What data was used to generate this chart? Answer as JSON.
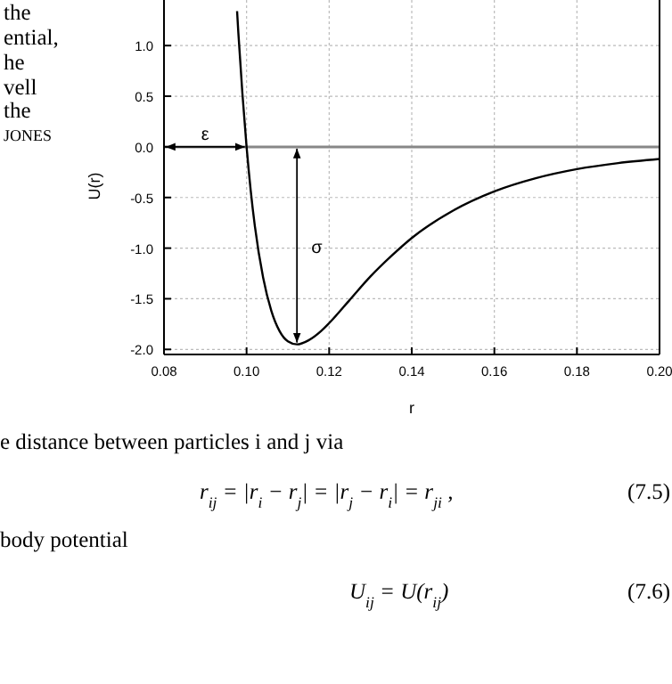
{
  "chart_data": {
    "type": "line",
    "xlabel": "r",
    "ylabel": "U(r)",
    "xlim": [
      0.08,
      0.2
    ],
    "xticks": [
      {
        "value": 0.08,
        "label": "0.08"
      },
      {
        "value": 0.1,
        "label": "0.10"
      },
      {
        "value": 0.12,
        "label": "0.12"
      },
      {
        "value": 0.14,
        "label": "0.14"
      },
      {
        "value": 0.16,
        "label": "0.16"
      },
      {
        "value": 0.18,
        "label": "0.18"
      },
      {
        "value": 0.2,
        "label": "0.20"
      }
    ],
    "ylim": [
      -2.05,
      1.45
    ],
    "yticks": [
      {
        "value": -2,
        "label": "-2.0"
      },
      {
        "value": -1.5,
        "label": "-1.5"
      },
      {
        "value": -1,
        "label": "-1.0"
      },
      {
        "value": -0.5,
        "label": "-0.5"
      },
      {
        "value": 0,
        "label": "0.0"
      },
      {
        "value": 0.5,
        "label": "0.5"
      },
      {
        "value": 1,
        "label": "1.0"
      }
    ],
    "grid": true,
    "marker": "none",
    "line_style": "solid",
    "series": [
      {
        "color": "#000000",
        "x": [
          0.0977,
          0.098,
          0.099,
          0.1,
          0.101,
          0.102,
          0.104,
          0.106,
          0.108,
          0.11,
          0.1122,
          0.115,
          0.118,
          0.12,
          0.125,
          0.13,
          0.135,
          0.14,
          0.15,
          0.16,
          0.17,
          0.18,
          0.19,
          0.2
        ],
        "values": [
          1.34,
          1.13,
          0.52,
          0,
          -0.43,
          -0.78,
          -1.29,
          -1.62,
          -1.82,
          -1.92,
          -1.95,
          -1.91,
          -1.82,
          -1.74,
          -1.51,
          -1.28,
          -1.08,
          -0.9,
          -0.63,
          -0.44,
          -0.31,
          -0.22,
          -0.16,
          -0.12
        ]
      }
    ],
    "ref_lines": [
      {
        "axis": "y",
        "value": 0,
        "color": "#888888"
      }
    ],
    "annotations": [
      {
        "text": "ε",
        "x": 0.09,
        "y": 0
      },
      "σ",
      "the",
      "ential,",
      "he",
      "vell",
      "the",
      "JONES",
      "e distance between particles i and j via",
      "r$_{ij}$ = |r$_{i}$ − r$_{j}$| = |r$_{j}$ − r$_{i}$| = r$_{ji}$ ,",
      "(7.5)",
      "body potential",
      "U$_{ij}$ = U(r$_{ij}$)",
      "(7.6)"
    ]
  }
}
